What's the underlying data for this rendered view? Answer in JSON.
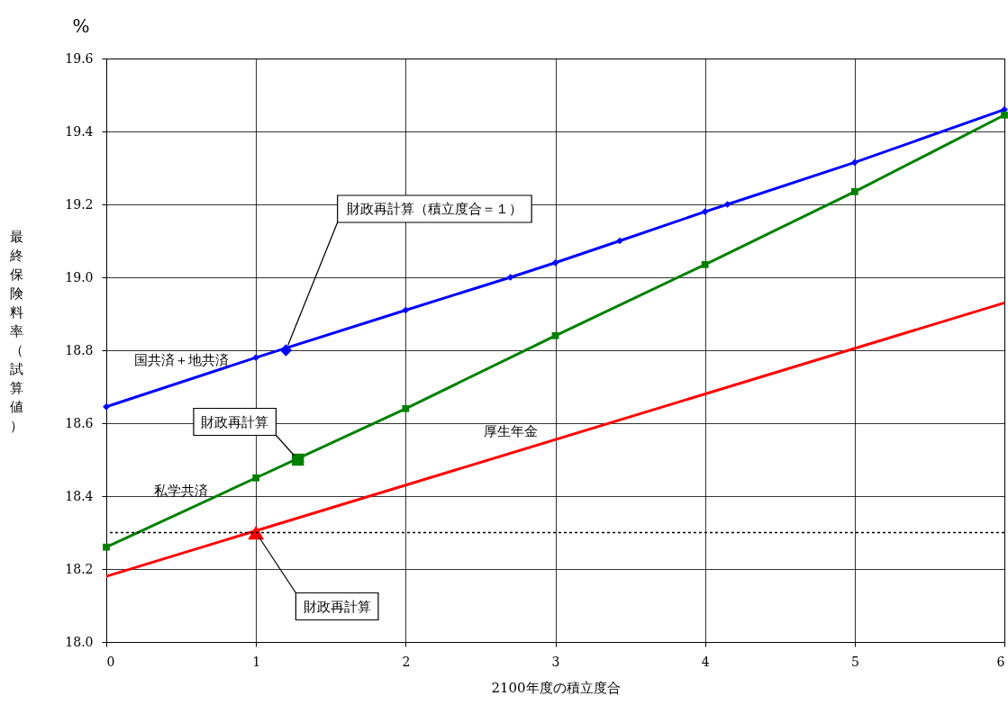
{
  "chart_data": {
    "type": "line",
    "xlabel": "2100年度の積立度合",
    "ylabel": "最終保険料率（試算値）",
    "xlim": [
      0,
      6
    ],
    "xticks": [
      0,
      1,
      2,
      3,
      4,
      5,
      6
    ],
    "ylim": [
      18.0,
      19.6
    ],
    "yticks": [
      {
        "value": 18.0,
        "label": "18.0"
      },
      18.2,
      18.4,
      18.6,
      18.8,
      {
        "value": 19.0,
        "label": "19.0"
      },
      19.2,
      19.4,
      19.6
    ],
    "grid": true,
    "legend": false,
    "series": [
      {
        "name": "国共済＋地共済",
        "color": "#0000ff",
        "marker": "diamond",
        "x": [
          0,
          1,
          2,
          2.7,
          3,
          3.43,
          4,
          4.15,
          5,
          6
        ],
        "values": [
          18.645,
          18.78,
          18.91,
          19.0,
          19.04,
          19.1,
          19.18,
          19.2,
          19.315,
          19.46
        ]
      },
      {
        "name": "私学共済",
        "color": "#008000",
        "marker": "square",
        "x": [
          0,
          1,
          2,
          3,
          4,
          5,
          6
        ],
        "values": [
          18.26,
          18.45,
          18.64,
          18.84,
          19.035,
          19.235,
          19.445
        ]
      },
      {
        "name": "厚生年金",
        "color": "#ff0000",
        "marker": "none",
        "x": [
          0,
          6
        ],
        "values": [
          18.18,
          18.93
        ]
      },
      {
        "type": "scatter",
        "color": "#0000ff",
        "marker": "diamond",
        "x": [
          1.2
        ],
        "values": [
          18.8
        ]
      },
      {
        "type": "scatter",
        "color": "#008000",
        "marker": "square",
        "x": [
          1.28
        ],
        "values": [
          18.5
        ]
      },
      {
        "type": "scatter",
        "color": "#ff0000",
        "marker": "triangle",
        "x": [
          1
        ],
        "values": [
          18.3
        ]
      }
    ],
    "ref_lines": [
      {
        "axis": "y",
        "value": 18.3,
        "color": "#000000",
        "line_style": "dotted"
      }
    ],
    "annotations": [
      "%",
      {
        "text": "財政再計算（積立度合＝１）",
        "x": 1.2,
        "y": 18.8
      },
      {
        "text": "財政再計算",
        "x": 1.28,
        "y": 18.5
      },
      {
        "text": "財政再計算",
        "x": 1,
        "y": 18.3
      }
    ]
  }
}
